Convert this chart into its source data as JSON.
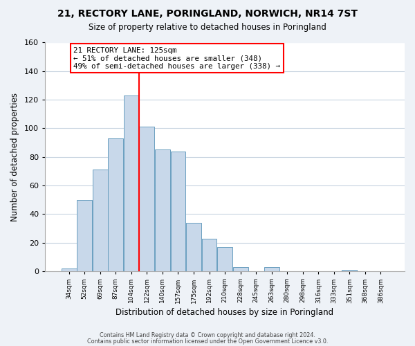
{
  "title": "21, RECTORY LANE, PORINGLAND, NORWICH, NR14 7ST",
  "subtitle": "Size of property relative to detached houses in Poringland",
  "xlabel": "Distribution of detached houses by size in Poringland",
  "ylabel": "Number of detached properties",
  "bar_color": "#c8d8ea",
  "bar_edge_color": "#6a9fc0",
  "vline_color": "red",
  "annotation_title": "21 RECTORY LANE: 125sqm",
  "annotation_line1": "← 51% of detached houses are smaller (348)",
  "annotation_line2": "49% of semi-detached houses are larger (338) →",
  "annotation_box_color": "white",
  "annotation_box_edge": "red",
  "bins": [
    "34sqm",
    "52sqm",
    "69sqm",
    "87sqm",
    "104sqm",
    "122sqm",
    "140sqm",
    "157sqm",
    "175sqm",
    "192sqm",
    "210sqm",
    "228sqm",
    "245sqm",
    "263sqm",
    "280sqm",
    "298sqm",
    "316sqm",
    "333sqm",
    "351sqm",
    "368sqm",
    "386sqm"
  ],
  "counts": [
    2,
    50,
    71,
    93,
    123,
    101,
    85,
    84,
    34,
    23,
    17,
    3,
    0,
    3,
    0,
    0,
    0,
    0,
    1,
    0,
    0
  ],
  "ylim": [
    0,
    160
  ],
  "yticks": [
    0,
    20,
    40,
    60,
    80,
    100,
    120,
    140,
    160
  ],
  "footer1": "Contains HM Land Registry data © Crown copyright and database right 2024.",
  "footer2": "Contains public sector information licensed under the Open Government Licence v3.0.",
  "bg_color": "#eef2f7",
  "plot_bg_color": "#ffffff",
  "grid_color": "#c8d4e0"
}
